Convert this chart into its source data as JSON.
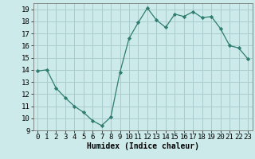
{
  "x": [
    0,
    1,
    2,
    3,
    4,
    5,
    6,
    7,
    8,
    9,
    10,
    11,
    12,
    13,
    14,
    15,
    16,
    17,
    18,
    19,
    20,
    21,
    22,
    23
  ],
  "y": [
    13.9,
    14.0,
    12.5,
    11.7,
    11.0,
    10.5,
    9.8,
    9.4,
    10.1,
    13.8,
    16.6,
    17.9,
    19.1,
    18.1,
    17.5,
    18.6,
    18.4,
    18.8,
    18.3,
    18.4,
    17.4,
    16.0,
    15.8,
    14.9
  ],
  "line_color": "#2e7d6e",
  "marker": "D",
  "marker_size": 2.2,
  "bg_color": "#cceaea",
  "grid_color": "#aacccc",
  "xlabel": "Humidex (Indice chaleur)",
  "ylim": [
    9,
    19.5
  ],
  "yticks": [
    9,
    10,
    11,
    12,
    13,
    14,
    15,
    16,
    17,
    18,
    19
  ],
  "xticks": [
    0,
    1,
    2,
    3,
    4,
    5,
    6,
    7,
    8,
    9,
    10,
    11,
    12,
    13,
    14,
    15,
    16,
    17,
    18,
    19,
    20,
    21,
    22,
    23
  ],
  "xlabel_fontsize": 7,
  "tick_fontsize": 6.5
}
